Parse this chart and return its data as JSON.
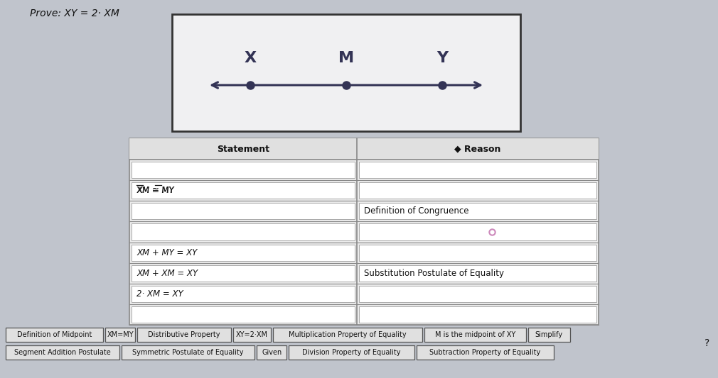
{
  "title": "Prove: XY = 2· XM",
  "background_color": "#c0c4cc",
  "diagram_box_bg": "#f5f5f5",
  "diagram_box_border": "#444444",
  "points": [
    "X",
    "M",
    "Y"
  ],
  "table_header_statement": "Statement",
  "table_header_reason": "◆ Reason",
  "rows": [
    {
      "statement": "",
      "reason": ""
    },
    {
      "statement": "XM ≅ MY",
      "reason": "",
      "overline_stmt": true
    },
    {
      "statement": "",
      "reason": "Definition of Congruence"
    },
    {
      "statement": "",
      "reason": "Ø"
    },
    {
      "statement": "XM + MY = XY",
      "reason": "",
      "italic": true
    },
    {
      "statement": "XM + XM = XY",
      "reason": "Substitution Postulate of Equality",
      "italic": true
    },
    {
      "statement": "2· XM = XY",
      "reason": "",
      "italic": true
    },
    {
      "statement": "",
      "reason": ""
    }
  ],
  "bottom_tags_row1": [
    "Definition of Midpoint",
    "XM=MY",
    "Distributive Property",
    "XY=2·XM",
    "Multiplication Property of Equality",
    "M is the midpoint of XY",
    "Simplify"
  ],
  "bottom_tags_row2": [
    "Segment Addition Postulate",
    "Symmetric Postulate of Equality",
    "Given",
    "Division Property of Equality",
    "Subtraction Property of Equality"
  ],
  "question_mark": "?",
  "font_size_title": 10,
  "font_size_table": 8.5,
  "font_size_tags": 7
}
